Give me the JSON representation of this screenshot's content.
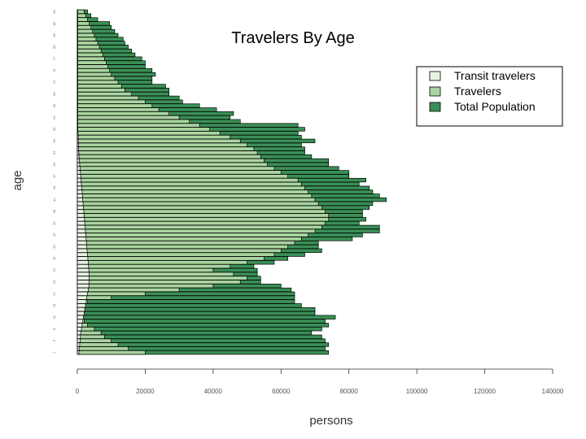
{
  "chart_data": {
    "type": "bar",
    "orientation": "horizontal",
    "title": "Travelers By Age",
    "xlabel": "persons",
    "ylabel": "age",
    "xlim": [
      0,
      140000
    ],
    "x_ticks": [
      "0",
      "20000",
      "40000",
      "60000",
      "80000",
      "100000",
      "120000",
      "140000"
    ],
    "age_min": 2,
    "age_max": 89,
    "legend_position": "top-right",
    "series": [
      {
        "name": "Transit travelers",
        "color": "#e6f4e1",
        "values": [
          500,
          500,
          700,
          800,
          900,
          1000,
          1200,
          1400,
          1600,
          1800,
          2000,
          2200,
          2400,
          2600,
          2800,
          3000,
          3200,
          3400,
          3500,
          3500,
          3500,
          3400,
          3300,
          3200,
          3100,
          3000,
          2900,
          2800,
          2700,
          2600,
          2500,
          2400,
          2300,
          2200,
          2100,
          2000,
          1900,
          1800,
          1700,
          1600,
          1500,
          1400,
          1300,
          1200,
          1100,
          1000,
          900,
          800,
          700,
          600,
          500,
          450,
          400,
          350,
          300,
          250,
          200,
          150,
          100,
          80,
          60,
          40,
          30,
          20,
          10,
          10,
          10,
          10,
          10,
          10,
          10,
          10,
          10,
          10,
          10,
          10,
          10,
          10,
          10,
          10,
          10,
          10,
          10,
          10,
          10,
          10,
          10,
          10
        ]
      },
      {
        "name": "Travelers",
        "color": "#a9d5a0",
        "values": [
          20000,
          15000,
          12000,
          10000,
          8000,
          7000,
          5000,
          3000,
          2000,
          1500,
          1500,
          1500,
          1800,
          3000,
          10000,
          20000,
          30000,
          40000,
          48000,
          50000,
          46000,
          40000,
          45000,
          50000,
          55000,
          58000,
          60000,
          62000,
          64000,
          66000,
          68000,
          70000,
          72000,
          73000,
          74000,
          74000,
          73000,
          72000,
          71000,
          70000,
          69000,
          68000,
          67000,
          66000,
          65000,
          62000,
          60000,
          58000,
          56000,
          55000,
          54000,
          53000,
          52000,
          50000,
          48000,
          45000,
          42000,
          39000,
          36000,
          33000,
          30000,
          27000,
          24000,
          22000,
          20000,
          18000,
          16000,
          14000,
          13000,
          12000,
          11000,
          10000,
          9500,
          9000,
          8500,
          8000,
          7500,
          7000,
          6500,
          6000,
          5500,
          5000,
          4500,
          4000,
          3500,
          3000,
          2500,
          2000
        ]
      },
      {
        "name": "Total Population",
        "color": "#3a8f56",
        "values": [
          74000,
          73000,
          74000,
          73000,
          72000,
          69000,
          72000,
          74000,
          73000,
          76000,
          70000,
          70000,
          66000,
          64000,
          64000,
          64000,
          63000,
          60000,
          54000,
          54000,
          53000,
          53000,
          52000,
          58000,
          62000,
          67000,
          72000,
          71000,
          71000,
          81000,
          84000,
          89000,
          89000,
          83000,
          85000,
          84000,
          84000,
          86000,
          87000,
          91000,
          89000,
          87000,
          86000,
          83000,
          85000,
          80000,
          80000,
          77000,
          74000,
          74000,
          69000,
          67000,
          67000,
          66000,
          70000,
          66000,
          65000,
          67000,
          65000,
          48000,
          45000,
          46000,
          41000,
          36000,
          31000,
          30000,
          27000,
          27000,
          26000,
          22000,
          22000,
          23000,
          22000,
          20000,
          20000,
          19000,
          17000,
          16000,
          15000,
          14000,
          13500,
          12000,
          11000,
          10000,
          9500,
          6000,
          4000,
          3000
        ]
      }
    ]
  }
}
